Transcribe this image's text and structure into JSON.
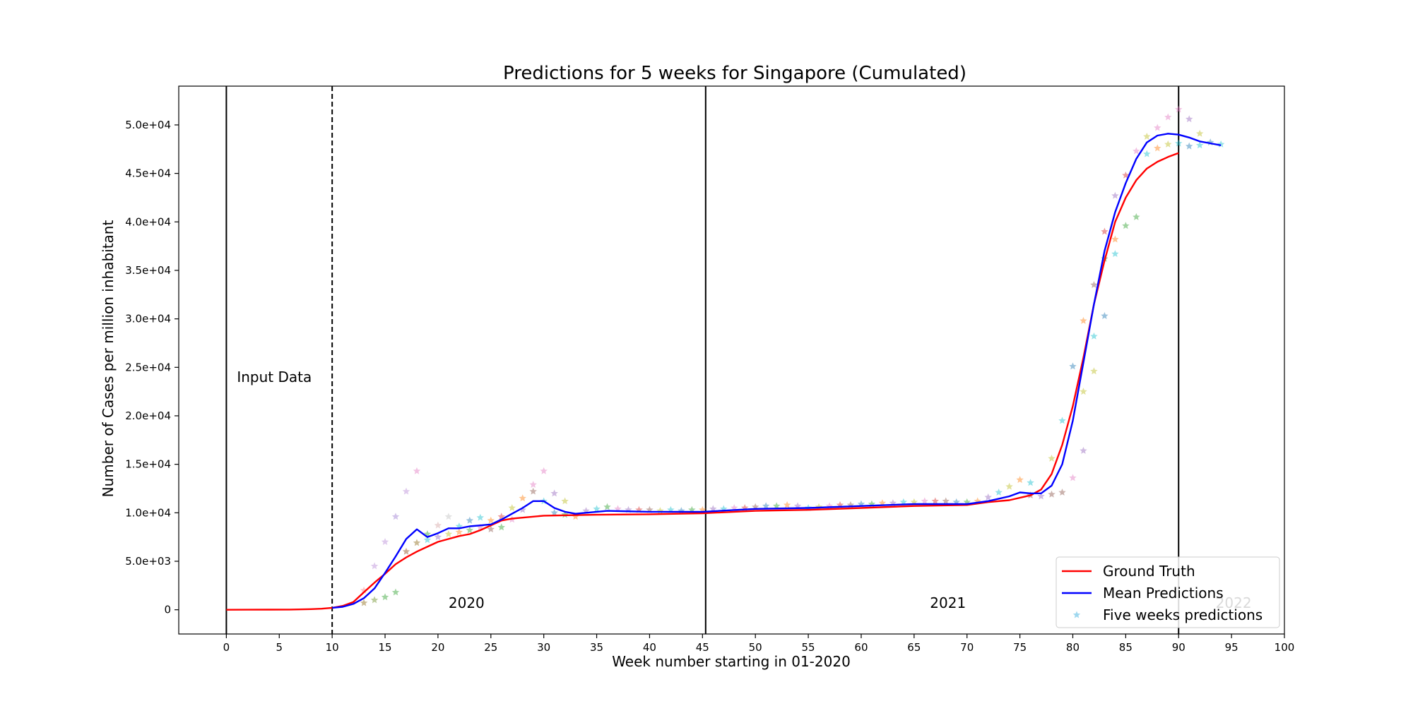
{
  "chart_data": {
    "type": "line",
    "title": "Predictions for 5 weeks for Singapore (Cumulated)",
    "xlabel": "Week number starting in 01-2020",
    "ylabel": "Number of Cases per million inhabitant",
    "xlim": [
      -4.5,
      100
    ],
    "ylim": [
      -2500,
      54000
    ],
    "x_ticks": [
      0,
      5,
      10,
      15,
      20,
      25,
      30,
      35,
      40,
      45,
      50,
      55,
      60,
      65,
      70,
      75,
      80,
      85,
      90,
      95,
      100
    ],
    "y_ticks": [
      0,
      5000,
      10000,
      15000,
      20000,
      25000,
      30000,
      35000,
      40000,
      45000,
      50000
    ],
    "y_tick_labels": [
      "0",
      "5.0e+03",
      "1.0e+04",
      "1.5e+04",
      "2.0e+04",
      "2.5e+04",
      "3.0e+04",
      "3.5e+04",
      "4.0e+04",
      "4.5e+04",
      "5.0e+04"
    ],
    "grid": false,
    "legend_position": "bottom-right",
    "vertical_lines": [
      {
        "x": 0,
        "style": "solid"
      },
      {
        "x": 10,
        "style": "dashed"
      },
      {
        "x": 45.3,
        "style": "solid"
      },
      {
        "x": 90,
        "style": "solid"
      }
    ],
    "annotations": [
      {
        "text": "Input Data",
        "x": 1,
        "y": 23500,
        "color": "#000000"
      },
      {
        "text": "2020",
        "x": 21,
        "y": 200,
        "color": "#000000"
      },
      {
        "text": "2021",
        "x": 66.5,
        "y": 200,
        "color": "#000000"
      },
      {
        "text": "2022",
        "x": 93.5,
        "y": 200,
        "color": "#bbbbbb"
      }
    ],
    "series": [
      {
        "name": "Ground Truth",
        "color": "#ff0000",
        "x": [
          0,
          2,
          4,
          6,
          8,
          9,
          10,
          11,
          12,
          13,
          14,
          15,
          16,
          17,
          18,
          19,
          20,
          21,
          22,
          23,
          24,
          25,
          26,
          27,
          28,
          30,
          35,
          40,
          45,
          50,
          55,
          60,
          65,
          70,
          72,
          74,
          76,
          77,
          78,
          79,
          80,
          81,
          82,
          83,
          84,
          85,
          86,
          87,
          88,
          89,
          90
        ],
        "y": [
          0,
          5,
          10,
          20,
          60,
          110,
          200,
          400,
          800,
          1800,
          2800,
          3700,
          4700,
          5400,
          6000,
          6500,
          7000,
          7300,
          7600,
          7800,
          8200,
          8700,
          9200,
          9400,
          9500,
          9700,
          9800,
          9850,
          9950,
          10200,
          10300,
          10500,
          10700,
          10800,
          11100,
          11300,
          11800,
          12400,
          14000,
          17000,
          21000,
          26000,
          31500,
          36000,
          40000,
          42500,
          44300,
          45500,
          46200,
          46700,
          47100
        ]
      },
      {
        "name": "Mean Predictions",
        "color": "#0000ff",
        "x": [
          10,
          11,
          12,
          13,
          14,
          15,
          16,
          17,
          18,
          19,
          20,
          21,
          22,
          23,
          24,
          25,
          26,
          27,
          28,
          29,
          30,
          31,
          32,
          33,
          34,
          35,
          36,
          40,
          45,
          50,
          55,
          60,
          65,
          70,
          72,
          74,
          75,
          76,
          77,
          78,
          79,
          80,
          81,
          82,
          83,
          84,
          85,
          86,
          87,
          88,
          89,
          90,
          91,
          92,
          93,
          94
        ],
        "y": [
          200,
          300,
          600,
          1200,
          2200,
          3800,
          5500,
          7300,
          8300,
          7500,
          7900,
          8400,
          8400,
          8600,
          8700,
          8800,
          9300,
          9900,
          10500,
          11200,
          11200,
          10500,
          10100,
          9900,
          10000,
          10100,
          10200,
          10100,
          10100,
          10400,
          10500,
          10700,
          10900,
          10900,
          11200,
          11700,
          12100,
          12000,
          12000,
          12800,
          15000,
          19500,
          25500,
          31500,
          37000,
          41000,
          44000,
          46500,
          48200,
          48900,
          49100,
          49000,
          48700,
          48300,
          48100,
          47900
        ]
      },
      {
        "name": "Five weeks predictions",
        "color": "#87ceeb",
        "type": "scatter",
        "marker": "star",
        "points": [
          {
            "x": 13,
            "y": 700,
            "c": "#8b6914"
          },
          {
            "x": 13,
            "y": 2000,
            "c": "#ff7f7f"
          },
          {
            "x": 14,
            "y": 1000,
            "c": "#6b8e23"
          },
          {
            "x": 14,
            "y": 4500,
            "c": "#b98ad6"
          },
          {
            "x": 15,
            "y": 1300,
            "c": "#2ca02c"
          },
          {
            "x": 15,
            "y": 7000,
            "c": "#b98ad6"
          },
          {
            "x": 16,
            "y": 1800,
            "c": "#2ca02c"
          },
          {
            "x": 16,
            "y": 9600,
            "c": "#9c7bd1"
          },
          {
            "x": 17,
            "y": 6000,
            "c": "#8b4513"
          },
          {
            "x": 17,
            "y": 12200,
            "c": "#b98ad6"
          },
          {
            "x": 18,
            "y": 6900,
            "c": "#8b6914"
          },
          {
            "x": 18,
            "y": 14300,
            "c": "#e377c2"
          },
          {
            "x": 19,
            "y": 7200,
            "c": "#17becf"
          },
          {
            "x": 19,
            "y": 7800,
            "c": "#2ca02c"
          },
          {
            "x": 20,
            "y": 7500,
            "c": "#9467bd"
          },
          {
            "x": 20,
            "y": 8700,
            "c": "#d4a5a5"
          },
          {
            "x": 21,
            "y": 7800,
            "c": "#bcbd22"
          },
          {
            "x": 21,
            "y": 9600,
            "c": "#c0c0c0"
          },
          {
            "x": 22,
            "y": 8000,
            "c": "#ff7f0e"
          },
          {
            "x": 22,
            "y": 8600,
            "c": "#17becf"
          },
          {
            "x": 23,
            "y": 8200,
            "c": "#2ca02c"
          },
          {
            "x": 23,
            "y": 9200,
            "c": "#1f77b4"
          },
          {
            "x": 24,
            "y": 8500,
            "c": "#e377c2"
          },
          {
            "x": 24,
            "y": 9500,
            "c": "#17becf"
          },
          {
            "x": 25,
            "y": 8300,
            "c": "#8c564b"
          },
          {
            "x": 25,
            "y": 9200,
            "c": "#ff7f0e"
          },
          {
            "x": 26,
            "y": 8500,
            "c": "#2ca02c"
          },
          {
            "x": 26,
            "y": 9600,
            "c": "#d62728"
          },
          {
            "x": 27,
            "y": 9300,
            "c": "#e377c2"
          },
          {
            "x": 27,
            "y": 10500,
            "c": "#bcbd22"
          },
          {
            "x": 28,
            "y": 10300,
            "c": "#9467bd"
          },
          {
            "x": 28,
            "y": 11500,
            "c": "#ff7f0e"
          },
          {
            "x": 29,
            "y": 12200,
            "c": "#8c564b"
          },
          {
            "x": 29,
            "y": 12900,
            "c": "#e377c2"
          },
          {
            "x": 30,
            "y": 11200,
            "c": "#17becf"
          },
          {
            "x": 30,
            "y": 14300,
            "c": "#e377c2"
          },
          {
            "x": 31,
            "y": 10000,
            "c": "#1f77b4"
          },
          {
            "x": 31,
            "y": 12000,
            "c": "#9467bd"
          },
          {
            "x": 32,
            "y": 9800,
            "c": "#2ca02c"
          },
          {
            "x": 32,
            "y": 11200,
            "c": "#bcbd22"
          },
          {
            "x": 33,
            "y": 9600,
            "c": "#ff7f0e"
          },
          {
            "x": 34,
            "y": 10200,
            "c": "#9467bd"
          },
          {
            "x": 35,
            "y": 10400,
            "c": "#17becf"
          },
          {
            "x": 36,
            "y": 10600,
            "c": "#2ca02c"
          },
          {
            "x": 37,
            "y": 10400,
            "c": "#e377c2"
          },
          {
            "x": 38,
            "y": 10300,
            "c": "#9467bd"
          },
          {
            "x": 39,
            "y": 10300,
            "c": "#d62728"
          },
          {
            "x": 40,
            "y": 10300,
            "c": "#8c564b"
          },
          {
            "x": 41,
            "y": 10200,
            "c": "#bcbd22"
          },
          {
            "x": 42,
            "y": 10300,
            "c": "#17becf"
          },
          {
            "x": 43,
            "y": 10200,
            "c": "#1f77b4"
          },
          {
            "x": 44,
            "y": 10300,
            "c": "#2ca02c"
          },
          {
            "x": 45,
            "y": 10300,
            "c": "#ff7f0e"
          },
          {
            "x": 46,
            "y": 10400,
            "c": "#9467bd"
          },
          {
            "x": 47,
            "y": 10400,
            "c": "#17becf"
          },
          {
            "x": 48,
            "y": 10500,
            "c": "#e377c2"
          },
          {
            "x": 49,
            "y": 10500,
            "c": "#d62728"
          },
          {
            "x": 50,
            "y": 10600,
            "c": "#8c564b"
          },
          {
            "x": 51,
            "y": 10700,
            "c": "#1f77b4"
          },
          {
            "x": 52,
            "y": 10700,
            "c": "#2ca02c"
          },
          {
            "x": 53,
            "y": 10800,
            "c": "#ff7f0e"
          },
          {
            "x": 54,
            "y": 10700,
            "c": "#9467bd"
          },
          {
            "x": 55,
            "y": 10500,
            "c": "#17becf"
          },
          {
            "x": 56,
            "y": 10600,
            "c": "#bcbd22"
          },
          {
            "x": 57,
            "y": 10700,
            "c": "#e377c2"
          },
          {
            "x": 58,
            "y": 10800,
            "c": "#d62728"
          },
          {
            "x": 59,
            "y": 10800,
            "c": "#8c564b"
          },
          {
            "x": 60,
            "y": 10900,
            "c": "#1f77b4"
          },
          {
            "x": 61,
            "y": 10900,
            "c": "#2ca02c"
          },
          {
            "x": 62,
            "y": 11000,
            "c": "#ff7f0e"
          },
          {
            "x": 63,
            "y": 11000,
            "c": "#9467bd"
          },
          {
            "x": 64,
            "y": 11100,
            "c": "#17becf"
          },
          {
            "x": 65,
            "y": 11100,
            "c": "#bcbd22"
          },
          {
            "x": 66,
            "y": 11200,
            "c": "#e377c2"
          },
          {
            "x": 67,
            "y": 11200,
            "c": "#d62728"
          },
          {
            "x": 68,
            "y": 11200,
            "c": "#8c564b"
          },
          {
            "x": 69,
            "y": 11100,
            "c": "#1f77b4"
          },
          {
            "x": 70,
            "y": 11100,
            "c": "#2ca02c"
          },
          {
            "x": 71,
            "y": 11200,
            "c": "#ff7f0e"
          },
          {
            "x": 72,
            "y": 11600,
            "c": "#9467bd"
          },
          {
            "x": 73,
            "y": 12100,
            "c": "#17becf"
          },
          {
            "x": 74,
            "y": 12700,
            "c": "#bcbd22"
          },
          {
            "x": 75,
            "y": 13400,
            "c": "#ff7f0e"
          },
          {
            "x": 76,
            "y": 13100,
            "c": "#17becf"
          },
          {
            "x": 76,
            "y": 11800,
            "c": "#8c564b"
          },
          {
            "x": 77,
            "y": 11700,
            "c": "#9467bd"
          },
          {
            "x": 78,
            "y": 11900,
            "c": "#8c564b"
          },
          {
            "x": 78,
            "y": 15600,
            "c": "#bcbd22"
          },
          {
            "x": 79,
            "y": 12100,
            "c": "#8c564b"
          },
          {
            "x": 79,
            "y": 19500,
            "c": "#17becf"
          },
          {
            "x": 80,
            "y": 13600,
            "c": "#e377c2"
          },
          {
            "x": 80,
            "y": 25100,
            "c": "#1f77b4"
          },
          {
            "x": 81,
            "y": 16400,
            "c": "#9467bd"
          },
          {
            "x": 81,
            "y": 22500,
            "c": "#bcbd22"
          },
          {
            "x": 81,
            "y": 29800,
            "c": "#ff7f0e"
          },
          {
            "x": 82,
            "y": 24600,
            "c": "#bcbd22"
          },
          {
            "x": 82,
            "y": 28200,
            "c": "#17becf"
          },
          {
            "x": 82,
            "y": 33500,
            "c": "#8c564b"
          },
          {
            "x": 83,
            "y": 30300,
            "c": "#1f77b4"
          },
          {
            "x": 83,
            "y": 36200,
            "c": "#2ca02c"
          },
          {
            "x": 83,
            "y": 39000,
            "c": "#d62728"
          },
          {
            "x": 84,
            "y": 36700,
            "c": "#17becf"
          },
          {
            "x": 84,
            "y": 38200,
            "c": "#ff7f0e"
          },
          {
            "x": 84,
            "y": 42700,
            "c": "#9467bd"
          },
          {
            "x": 85,
            "y": 39600,
            "c": "#2ca02c"
          },
          {
            "x": 85,
            "y": 44800,
            "c": "#d62728"
          },
          {
            "x": 86,
            "y": 40500,
            "c": "#2ca02c"
          },
          {
            "x": 86,
            "y": 47300,
            "c": "#e377c2"
          },
          {
            "x": 87,
            "y": 47000,
            "c": "#17becf"
          },
          {
            "x": 87,
            "y": 48800,
            "c": "#bcbd22"
          },
          {
            "x": 88,
            "y": 47600,
            "c": "#ff7f0e"
          },
          {
            "x": 88,
            "y": 49700,
            "c": "#e377c2"
          },
          {
            "x": 89,
            "y": 48000,
            "c": "#bcbd22"
          },
          {
            "x": 89,
            "y": 50800,
            "c": "#e377c2"
          },
          {
            "x": 90,
            "y": 48100,
            "c": "#17becf"
          },
          {
            "x": 90,
            "y": 51600,
            "c": "#e377c2"
          },
          {
            "x": 91,
            "y": 47800,
            "c": "#1f77b4"
          },
          {
            "x": 91,
            "y": 50600,
            "c": "#9467bd"
          },
          {
            "x": 92,
            "y": 47900,
            "c": "#17becf"
          },
          {
            "x": 92,
            "y": 49100,
            "c": "#bcbd22"
          },
          {
            "x": 93,
            "y": 48200,
            "c": "#1f77b4"
          },
          {
            "x": 94,
            "y": 48000,
            "c": "#17becf"
          }
        ]
      }
    ]
  }
}
